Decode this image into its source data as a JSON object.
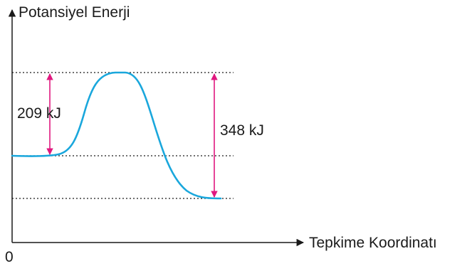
{
  "diagram": {
    "y_axis_label": "Potansiyel Enerji",
    "x_axis_label": "Tepkime Koordinatı",
    "origin_label": "0",
    "activation_energy_label": "209 kJ",
    "reverse_activation_energy_label": "348 kJ",
    "colors": {
      "curve": "#1aa7dc",
      "energy_arrows": "#e0187f",
      "axes": "#1a1a1a",
      "reference_lines": "#1a1a1a"
    }
  }
}
